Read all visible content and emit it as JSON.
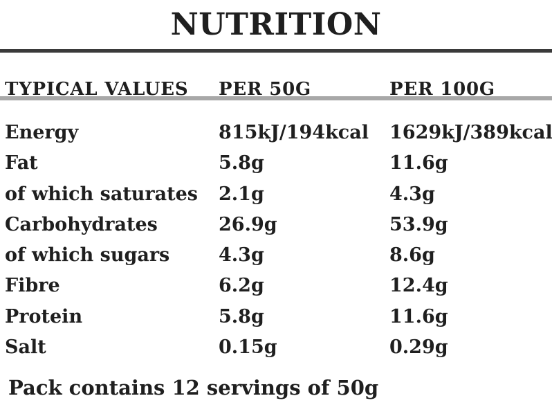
{
  "title": "NUTRITION",
  "table": {
    "headers": [
      "TYPICAL VALUES",
      "PER 50G",
      "PER 100G"
    ],
    "rows": [
      {
        "nutrient": "Energy",
        "per_50g": "815kJ/194kcal",
        "per_100g": "1629kJ/389kcal"
      },
      {
        "nutrient": "Fat",
        "per_50g": "5.8g",
        "per_100g": "11.6g"
      },
      {
        "nutrient": "of which saturates",
        "per_50g": "2.1g",
        "per_100g": "4.3g"
      },
      {
        "nutrient": "Carbohydrates",
        "per_50g": "26.9g",
        "per_100g": "53.9g"
      },
      {
        "nutrient": "of which sugars",
        "per_50g": "4.3g",
        "per_100g": "8.6g"
      },
      {
        "nutrient": "Fibre",
        "per_50g": "6.2g",
        "per_100g": "12.4g"
      },
      {
        "nutrient": "Protein",
        "per_50g": "5.8g",
        "per_100g": "11.6g"
      },
      {
        "nutrient": "Salt",
        "per_50g": "0.15g",
        "per_100g": "0.29g"
      }
    ]
  },
  "footer": "Pack contains 12 servings of 50g",
  "colors": {
    "text": "#1f1f1f",
    "top_rule": "#3a3a3a",
    "header_rule": "#a8a8a8",
    "background": "#ffffff"
  }
}
